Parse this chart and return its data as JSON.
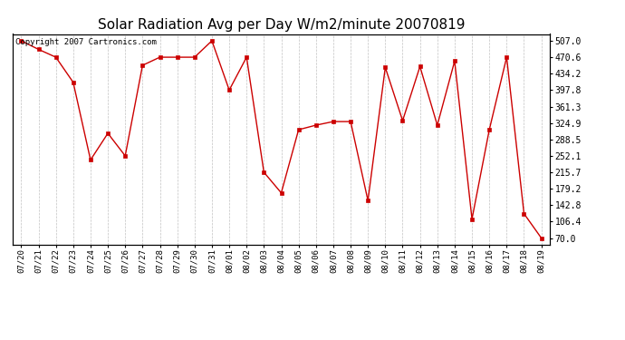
{
  "title": "Solar Radiation Avg per Day W/m2/minute 20070819",
  "copyright_text": "Copyright 2007 Cartronics.com",
  "dates": [
    "07/20",
    "07/21",
    "07/22",
    "07/23",
    "07/24",
    "07/25",
    "07/26",
    "07/27",
    "07/28",
    "07/29",
    "07/30",
    "07/31",
    "08/01",
    "08/02",
    "08/03",
    "08/04",
    "08/05",
    "08/06",
    "08/07",
    "08/08",
    "08/09",
    "08/10",
    "08/11",
    "08/12",
    "08/13",
    "08/14",
    "08/15",
    "08/16",
    "08/17",
    "08/18",
    "08/19"
  ],
  "values": [
    507.0,
    488.0,
    470.6,
    415.0,
    243.0,
    302.0,
    252.1,
    452.6,
    470.6,
    470.6,
    470.6,
    507.0,
    397.8,
    470.6,
    215.7,
    170.0,
    310.0,
    320.0,
    328.0,
    328.0,
    153.0,
    448.0,
    330.0,
    450.0,
    320.0,
    462.0,
    112.0,
    310.0,
    470.6,
    124.0,
    70.0
  ],
  "line_color": "#cc0000",
  "marker": "s",
  "marker_size": 2.5,
  "bg_color": "#ffffff",
  "grid_color": "#bbbbbb",
  "title_fontsize": 11,
  "copyright_fontsize": 6.5,
  "yticks": [
    70.0,
    106.4,
    142.8,
    179.2,
    215.7,
    252.1,
    288.5,
    324.9,
    361.3,
    397.8,
    434.2,
    470.6,
    507.0
  ],
  "ylim": [
    55,
    522
  ]
}
